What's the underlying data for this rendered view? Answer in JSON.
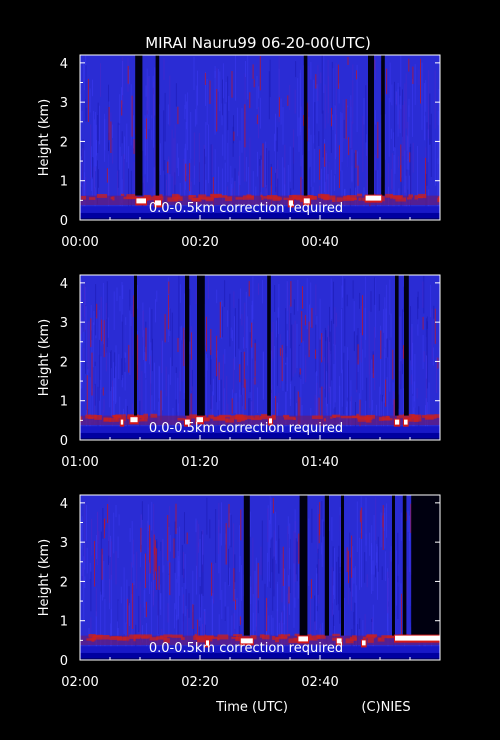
{
  "title": "MIRAI Nauru99 06-20-00(UTC)",
  "xlabel": "Time (UTC)",
  "credit": "(C)NIES",
  "colors": {
    "background": "#000000",
    "field_blue": "#2a2cd4",
    "noise_red": "#c8141e",
    "surface": "#0000a0",
    "cloud": "#ffffff",
    "gap": "#000010"
  },
  "chart_data": [
    {
      "type": "heatmap",
      "ylabel": "Height (km)",
      "ylim": [
        0,
        4.2
      ],
      "xlim_min": [
        0,
        60
      ],
      "yticks": [
        "0",
        "1",
        "2",
        "3",
        "4"
      ],
      "xticks": [
        {
          "v": 0,
          "label": "00:00"
        },
        {
          "v": 20,
          "label": "00:20"
        },
        {
          "v": 40,
          "label": "00:40"
        }
      ],
      "annotation": "0.0-0.5km correction required",
      "dropouts_min": [
        [
          9.2,
          10.4
        ],
        [
          12.6,
          13.2
        ],
        [
          37.3,
          37.9
        ],
        [
          48.0,
          49.0
        ],
        [
          50.2,
          50.8
        ]
      ],
      "cloud_base_km": [
        [
          9.4,
          11.0,
          0.55
        ],
        [
          12.5,
          13.5,
          0.5
        ],
        [
          34.8,
          35.5,
          0.5
        ],
        [
          37.3,
          38.3,
          0.55
        ],
        [
          47.6,
          50.2,
          0.62
        ]
      ]
    },
    {
      "type": "heatmap",
      "ylabel": "Height (km)",
      "ylim": [
        0,
        4.2
      ],
      "xlim_min": [
        60,
        120
      ],
      "yticks": [
        "0",
        "1",
        "2",
        "3",
        "4"
      ],
      "xticks": [
        {
          "v": 60,
          "label": "01:00"
        },
        {
          "v": 80,
          "label": "01:20"
        },
        {
          "v": 100,
          "label": "01:40"
        }
      ],
      "annotation": "0.0-0.5km correction required",
      "dropouts_min": [
        [
          69.0,
          69.5
        ],
        [
          77.5,
          78.2
        ],
        [
          79.5,
          80.8
        ],
        [
          91.2,
          91.8
        ],
        [
          112.5,
          113.1
        ],
        [
          114.0,
          114.8
        ]
      ],
      "cloud_base_km": [
        [
          66.8,
          67.2,
          0.52
        ],
        [
          68.4,
          69.6,
          0.58
        ],
        [
          77.5,
          78.3,
          0.52
        ],
        [
          79.4,
          80.5,
          0.58
        ],
        [
          91.5,
          92.0,
          0.55
        ],
        [
          112.5,
          113.2,
          0.52
        ],
        [
          114.0,
          114.6,
          0.52
        ]
      ]
    },
    {
      "type": "heatmap",
      "ylabel": "Height (km)",
      "ylim": [
        0,
        4.2
      ],
      "xlim_min": [
        120,
        180
      ],
      "yticks": [
        "0",
        "1",
        "2",
        "3",
        "4"
      ],
      "xticks": [
        {
          "v": 120,
          "label": "02:00"
        },
        {
          "v": 140,
          "label": "02:20"
        },
        {
          "v": 160,
          "label": "02:40"
        }
      ],
      "annotation": "0.0-0.5km correction required",
      "dropouts_min": [
        [
          147.3,
          148.3
        ],
        [
          156.6,
          157.9
        ],
        [
          160.8,
          161.5
        ],
        [
          163.5,
          164.0
        ],
        [
          172.0,
          172.5
        ],
        [
          173.8,
          174.4
        ],
        [
          175.2,
          180.0
        ]
      ],
      "cloud_base_km": [
        [
          141.0,
          141.5,
          0.5
        ],
        [
          146.8,
          148.8,
          0.55
        ],
        [
          156.4,
          158.0,
          0.6
        ],
        [
          162.8,
          163.6,
          0.55
        ],
        [
          167.0,
          167.6,
          0.5
        ],
        [
          172.5,
          180.0,
          0.62
        ]
      ]
    }
  ]
}
